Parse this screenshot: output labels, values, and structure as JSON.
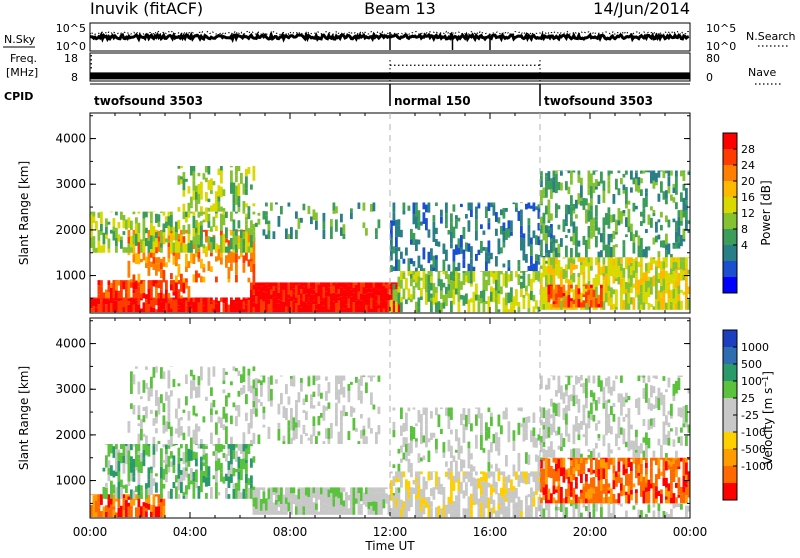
{
  "header": {
    "station": "Inuvik (fitACF)",
    "beam": "Beam 13",
    "date": "14/Jun/2014"
  },
  "summary_panels": {
    "nsky_label": "N.Sky",
    "nsearch_label": "N.Search",
    "nsky_ticks": [
      "10^5",
      "10^0"
    ],
    "nsearch_ticks": [
      "10^5",
      "10^0"
    ],
    "freq_label": "Freq.",
    "freq_unit": "[MHz]",
    "freq_ticks": [
      "18",
      "8"
    ],
    "nave_label": "Nave",
    "nave_ticks": [
      "80",
      "0"
    ],
    "cpid_label": "CPID",
    "cpid_segments": [
      {
        "name": "twofsound 3503",
        "start_hour": 0,
        "end_hour": 12
      },
      {
        "name": "normal 150",
        "start_hour": 12,
        "end_hour": 18
      },
      {
        "name": "twofsound 3503",
        "start_hour": 18,
        "end_hour": 24
      }
    ],
    "freq_mhz": [
      {
        "start_hour": 0,
        "end_hour": 12,
        "value": 10
      },
      {
        "start_hour": 12,
        "end_hour": 18,
        "value": 10
      },
      {
        "start_hour": 18,
        "end_hour": 24,
        "value": 10
      }
    ],
    "nave": [
      {
        "start_hour": 0,
        "end_hour": 12,
        "value": 22
      },
      {
        "start_hour": 12,
        "end_hour": 18,
        "value": 45
      },
      {
        "start_hour": 18,
        "end_hour": 24,
        "value": 22
      }
    ]
  },
  "chart_data": [
    {
      "type": "heatmap",
      "quantity": "Power",
      "colorbar_label": "Power [dB]",
      "ylabel": "Slant Range [km]",
      "xlabel": "Time UT",
      "xlim": [
        0,
        24
      ],
      "ylim": [
        180,
        4560
      ],
      "x_ticks": [
        "00:00",
        "04:00",
        "08:00",
        "12:00",
        "16:00",
        "20:00",
        "00:00"
      ],
      "y_ticks": [
        1000,
        2000,
        3000,
        4000
      ],
      "colorbar_ticks": [
        "28",
        "24",
        "20",
        "16",
        "12",
        "8",
        "4"
      ],
      "colorbar_colors": [
        "#ff0000",
        "#ff3c00",
        "#ff7f00",
        "#ffb800",
        "#d9d900",
        "#84c232",
        "#3c9c5a",
        "#2a7f87",
        "#1a4fd0",
        "#0000ff"
      ],
      "regions": [
        {
          "t0": 0.0,
          "t1": 6.4,
          "r0": 200,
          "r1": 520,
          "level": 0,
          "density": 0.95
        },
        {
          "t0": 0.3,
          "t1": 4.0,
          "r0": 500,
          "r1": 900,
          "level": 1,
          "density": 0.8
        },
        {
          "t0": 6.4,
          "t1": 12.3,
          "r0": 200,
          "r1": 850,
          "level": 0,
          "density": 1.0
        },
        {
          "t0": 1.5,
          "t1": 6.5,
          "r0": 850,
          "r1": 2000,
          "level": 2,
          "density": 0.5
        },
        {
          "t0": 0.0,
          "t1": 6.5,
          "r0": 1500,
          "r1": 2400,
          "level": 5,
          "density": 0.5
        },
        {
          "t0": 3.5,
          "t1": 6.5,
          "r0": 2400,
          "r1": 3400,
          "level": 5,
          "density": 0.4
        },
        {
          "t0": 6.5,
          "t1": 11.5,
          "r0": 1800,
          "r1": 2600,
          "level": 6,
          "density": 0.25
        },
        {
          "t0": 12.0,
          "t1": 18.0,
          "r0": 200,
          "r1": 1100,
          "level": 5,
          "density": 0.6
        },
        {
          "t0": 12.0,
          "t1": 18.5,
          "r0": 1100,
          "r1": 2600,
          "level": 7,
          "density": 0.35
        },
        {
          "t0": 18.0,
          "t1": 24.0,
          "r0": 250,
          "r1": 1400,
          "level": 4,
          "density": 0.75
        },
        {
          "t0": 18.0,
          "t1": 24.0,
          "r0": 1400,
          "r1": 3300,
          "level": 6,
          "density": 0.45
        },
        {
          "t0": 18.3,
          "t1": 20.5,
          "r0": 300,
          "r1": 800,
          "level": 1,
          "density": 0.7
        }
      ]
    },
    {
      "type": "heatmap",
      "quantity": "Velocity",
      "colorbar_label": "Velocity [m s-1]",
      "ylabel": "Slant Range [km]",
      "xlabel": "Time UT",
      "xlim": [
        0,
        24
      ],
      "ylim": [
        180,
        4560
      ],
      "x_ticks": [
        "00:00",
        "04:00",
        "08:00",
        "12:00",
        "16:00",
        "20:00",
        "00:00"
      ],
      "y_ticks": [
        1000,
        2000,
        3000,
        4000
      ],
      "colorbar_ticks": [
        "1000",
        "500",
        "100",
        "25",
        "-25",
        "-100",
        "-500",
        "-1000"
      ],
      "colorbar_colors": [
        "#1c3fc0",
        "#2e6db0",
        "#2a9a6a",
        "#5ac23c",
        "#c8c8c8",
        "#c8c8c8",
        "#ffd000",
        "#ff9c00",
        "#ff6a00",
        "#ff0000"
      ],
      "regions": [
        {
          "t0": 0.0,
          "t1": 3.0,
          "r0": 200,
          "r1": 700,
          "level": 8,
          "density": 0.8
        },
        {
          "t0": 0.5,
          "t1": 6.5,
          "r0": 600,
          "r1": 1800,
          "level": 3,
          "density": 0.55
        },
        {
          "t0": 1.5,
          "t1": 6.5,
          "r0": 1800,
          "r1": 3500,
          "level": 4,
          "density": 0.3
        },
        {
          "t0": 6.5,
          "t1": 12.3,
          "r0": 250,
          "r1": 850,
          "level": 4,
          "density": 0.9
        },
        {
          "t0": 6.5,
          "t1": 11.5,
          "r0": 1800,
          "r1": 3300,
          "level": 4,
          "density": 0.3
        },
        {
          "t0": 12.0,
          "t1": 18.0,
          "r0": 200,
          "r1": 1200,
          "level": 5,
          "density": 0.7
        },
        {
          "t0": 12.0,
          "t1": 18.5,
          "r0": 1200,
          "r1": 2600,
          "level": 4,
          "density": 0.3
        },
        {
          "t0": 18.0,
          "t1": 24.0,
          "r0": 500,
          "r1": 1500,
          "level": 8,
          "density": 0.75
        },
        {
          "t0": 18.0,
          "t1": 24.0,
          "r0": 1500,
          "r1": 3300,
          "level": 4,
          "density": 0.35
        },
        {
          "t0": 18.0,
          "t1": 24.0,
          "r0": 200,
          "r1": 500,
          "level": 4,
          "density": 0.5
        }
      ]
    }
  ]
}
